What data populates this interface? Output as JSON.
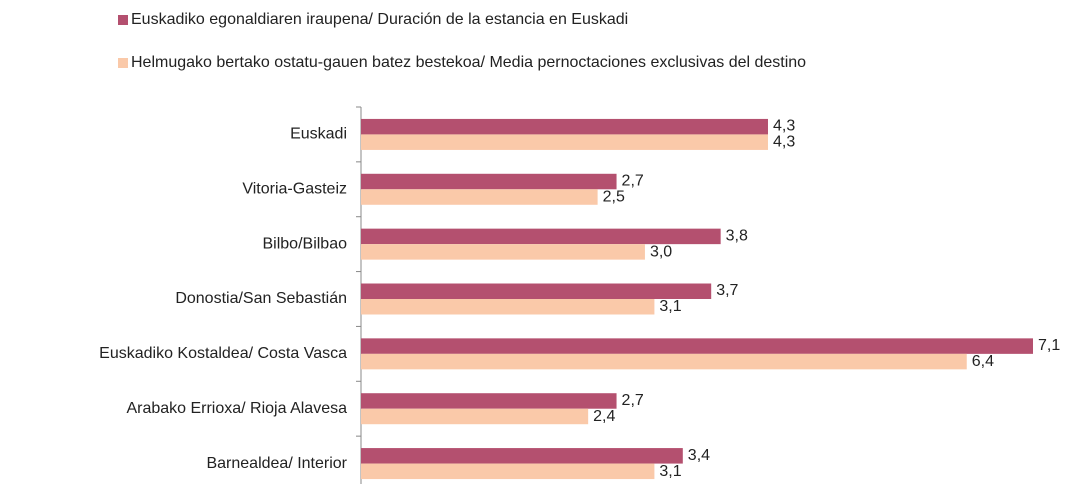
{
  "chart_data": {
    "type": "hbar",
    "categories": [
      "Euskadi",
      "Vitoria-Gasteiz",
      "Bilbo/Bilbao",
      "Donostia/San Sebastián",
      "Euskadiko Kostaldea/ Costa Vasca",
      "Arabako Errioxa/ Rioja Alavesa",
      "Barnealdea/ Interior"
    ],
    "series": [
      {
        "name": "Euskadiko egonaldiaren iraupena/ Duración de la estancia en Euskadi",
        "color": "#b4506f",
        "values": [
          4.3,
          2.7,
          3.8,
          3.7,
          7.1,
          2.7,
          3.4
        ],
        "value_labels": [
          "4,3",
          "2,7",
          "3,8",
          "3,7",
          "7,1",
          "2,7",
          "3,4"
        ]
      },
      {
        "name": "Helmugako bertako ostatu-gauen batez bestekoa/ Media pernoctaciones exclusivas del destino",
        "color": "#fac9a9",
        "values": [
          4.3,
          2.5,
          3.0,
          3.1,
          6.4,
          2.4,
          3.1
        ],
        "value_labels": [
          "4,3",
          "2,5",
          "3,0",
          "3,1",
          "6,4",
          "2,4",
          "3,1"
        ]
      }
    ],
    "xlim": [
      0,
      7.1
    ],
    "legend": "top"
  }
}
